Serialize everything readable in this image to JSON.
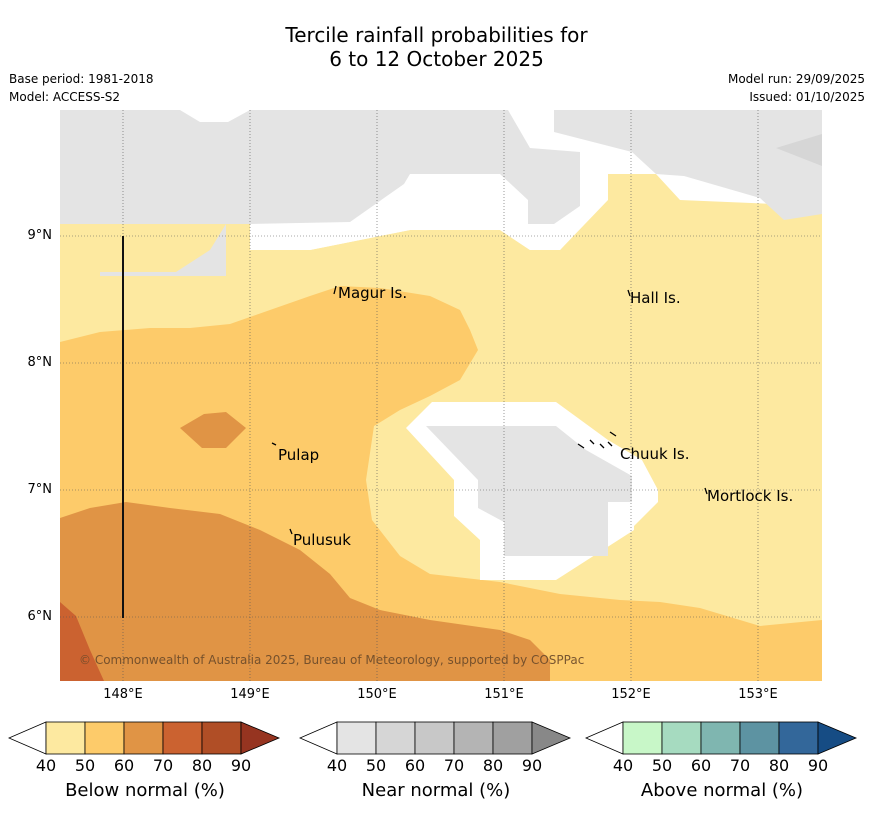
{
  "title": {
    "line1": "Tercile rainfall probabilities for",
    "line2": "6 to 12 October 2025"
  },
  "meta": {
    "base_period": "Base period: 1981-2018",
    "model": "Model: ACCESS-S2",
    "model_run": "Model run: 29/09/2025",
    "issued": "Issued: 01/10/2025"
  },
  "map": {
    "lat_labels": [
      "9°N",
      "8°N",
      "7°N",
      "6°N"
    ],
    "lon_labels": [
      "148°E",
      "149°E",
      "150°E",
      "151°E",
      "152°E",
      "153°E"
    ],
    "places": [
      "Magur Is.",
      "Hall Is.",
      "Pulap",
      "Chuuk Is.",
      "Mortlock Is.",
      "Pulusuk"
    ],
    "copyright": "© Commonwealth of Australia 2025, Bureau of Meteorology, supported by COSPPac",
    "colors": {
      "below_40_50": "#fde9a0",
      "below_50_60": "#fdcb6a",
      "below_60_70": "#e09445",
      "below_70_80": "#cb6230",
      "near_40_50": "#e4e4e4",
      "near_50_60": "#d6d6d6"
    }
  },
  "colorbars": [
    {
      "title": "Below normal (%)",
      "ticks": [
        "40",
        "50",
        "60",
        "70",
        "80",
        "90"
      ],
      "colors": [
        "#ffffff",
        "#fde9a0",
        "#fdcb6a",
        "#e09445",
        "#cb6230",
        "#b04e26",
        "#963420"
      ]
    },
    {
      "title": "Near normal (%)",
      "ticks": [
        "40",
        "50",
        "60",
        "70",
        "80",
        "90"
      ],
      "colors": [
        "#ffffff",
        "#e4e4e4",
        "#d6d6d6",
        "#c8c8c8",
        "#b4b4b4",
        "#a0a0a0",
        "#888888"
      ]
    },
    {
      "title": "Above normal (%)",
      "ticks": [
        "40",
        "50",
        "60",
        "70",
        "80",
        "90"
      ],
      "colors": [
        "#ffffff",
        "#c8f7c8",
        "#a6dbc0",
        "#7fb6b0",
        "#5d93a2",
        "#33679a",
        "#164c84"
      ]
    }
  ]
}
